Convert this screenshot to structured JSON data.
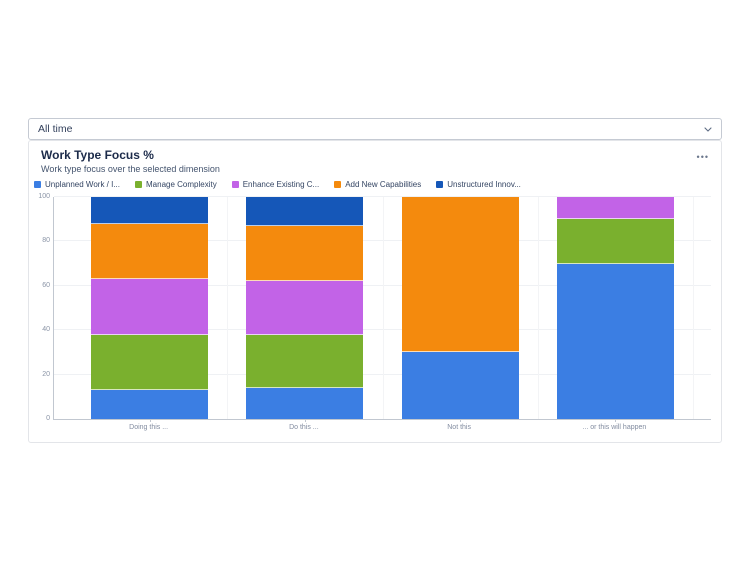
{
  "filter_bar": {
    "selected_value": "All time"
  },
  "card": {
    "title": "Work Type Focus %",
    "subtitle": "Work type focus over the selected dimension"
  },
  "icons": {
    "more_options": "•••"
  },
  "chart_data": {
    "type": "bar",
    "stacked": true,
    "title": "Work Type Focus %",
    "categories": [
      "Doing this ...",
      "Do this ...",
      "Not this",
      "... or this will happen"
    ],
    "series": [
      {
        "name": "Unplanned Work / I...",
        "color": "#3B7EE3",
        "values": [
          13,
          14,
          30,
          70
        ]
      },
      {
        "name": "Manage Complexity",
        "color": "#7AB02E",
        "values": [
          25,
          24,
          0,
          20
        ]
      },
      {
        "name": "Enhance Existing C...",
        "color": "#C263E7",
        "values": [
          25,
          24,
          0,
          10
        ]
      },
      {
        "name": "Add New Capabilities",
        "color": "#F48A0D",
        "values": [
          25,
          25,
          70,
          0
        ]
      },
      {
        "name": "Unstructured Innov...",
        "color": "#1557B8",
        "values": [
          12,
          13,
          0,
          0
        ]
      }
    ],
    "xlabel": "",
    "ylabel": "",
    "ylim": [
      0,
      100
    ],
    "yticks": [
      0,
      20,
      40,
      60,
      80,
      100
    ],
    "grid": true,
    "legend_position": "top",
    "axis_color": "#C1C7D0",
    "gridline_color": "#EFF1F4",
    "tick_label_color": "#8A94A6"
  }
}
